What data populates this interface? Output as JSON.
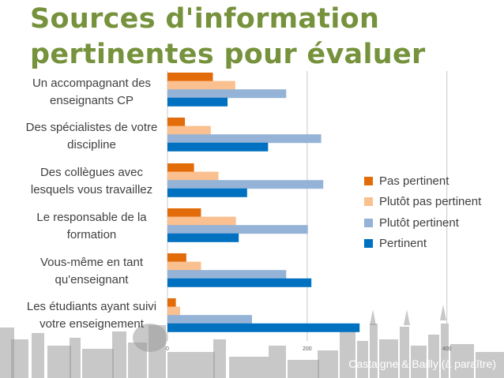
{
  "title_lines": [
    "Sources d'information",
    "pertinentes pour évaluer"
  ],
  "credit": "Castaigne & Bailly (à paraître)",
  "colors": {
    "title": "#76923c",
    "pas_pertinent": "#e36c0a",
    "plutot_pas_pertinent": "#fac090",
    "plutot_pertinent": "#95b3d7",
    "pertinent": "#0070c0",
    "skyline": "#9a9a9a"
  },
  "chart_data": {
    "type": "bar",
    "orientation": "horizontal",
    "title": "Sources d'information pertinentes pour évaluer",
    "categories": [
      "Un accompagnant des enseignants CP",
      "Des spécialistes de votre discipline",
      "Des collègues avec lesquels vous travaillez",
      "Le responsable de la formation",
      "Vous-même en tant qu'enseignant",
      "Les étudiants ayant suivi votre enseignement"
    ],
    "category_lines": [
      [
        "Un accompagnant des",
        "enseignants CP"
      ],
      [
        "Des spécialistes de votre",
        "discipline"
      ],
      [
        "Des collègues avec",
        "lesquels vous travaillez"
      ],
      [
        "Le responsable de la",
        "formation"
      ],
      [
        "Vous-même en tant",
        "qu'enseignant"
      ],
      [
        "Les étudiants ayant suivi",
        "votre enseignement"
      ]
    ],
    "series": [
      {
        "name": "Pas pertinent",
        "color": "#e36c0a",
        "values": [
          65,
          25,
          38,
          48,
          27,
          12
        ]
      },
      {
        "name": "Plutôt pas pertinent",
        "color": "#fac090",
        "values": [
          97,
          62,
          73,
          98,
          48,
          18
        ]
      },
      {
        "name": "Plutôt pertinent",
        "color": "#95b3d7",
        "values": [
          170,
          220,
          223,
          201,
          170,
          121
        ]
      },
      {
        "name": "Pertinent",
        "color": "#0070c0",
        "values": [
          86,
          144,
          114,
          102,
          206,
          275
        ]
      }
    ],
    "xlim": [
      0,
      400
    ],
    "xticks": [
      0,
      200,
      400
    ],
    "legend_position": "right",
    "grid": true
  }
}
